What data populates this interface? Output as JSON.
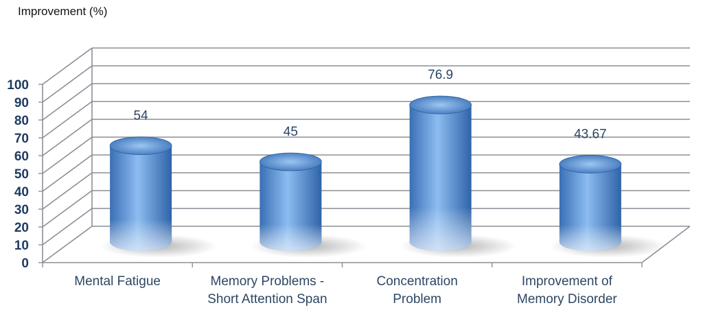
{
  "chart_data": {
    "type": "bar",
    "style": "3d-cylinder",
    "ylabel": "Improvement (%)",
    "ylim": [
      0,
      100
    ],
    "yticks": [
      0,
      10,
      20,
      30,
      40,
      50,
      60,
      70,
      80,
      90,
      100
    ],
    "categories": [
      [
        "Mental Fatigue"
      ],
      [
        "Memory Problems -",
        "Short Attention Span"
      ],
      [
        "Concentration",
        "Problem"
      ],
      [
        "Improvement of",
        "Memory Disorder"
      ]
    ],
    "values": [
      54,
      45,
      76.9,
      43.67
    ],
    "data_labels": [
      "54",
      "45",
      "76.9",
      "43.67"
    ],
    "grid": true,
    "legend": "none",
    "colors": {
      "bar": "#4f86c9",
      "bar_highlight": "#a9cdf2",
      "grid": "#8a8f96"
    }
  }
}
